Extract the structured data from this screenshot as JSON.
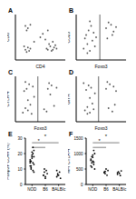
{
  "chart_data": [
    {
      "type": "scatter",
      "title": "A",
      "x_label": "CD4",
      "y_label": "CD8",
      "xlim": [
        0,
        4
      ],
      "ylim": [
        0,
        4
      ],
      "xticks": [
        0,
        1,
        2,
        3,
        4
      ],
      "yticks": [
        0,
        1,
        2,
        3,
        4
      ],
      "tick_labels": false,
      "color": "#555555",
      "x": [
        0.8,
        1.0,
        0.9,
        1.2,
        0.7,
        2.5,
        2.8,
        3.0,
        2.7,
        3.1,
        2.9,
        3.2,
        1.0,
        0.8,
        1.2,
        0.9,
        2.0,
        2.2,
        2.6,
        1.5,
        3.3,
        2.6,
        1.1,
        2.4,
        3.0
      ],
      "values": [
        0.9,
        1.1,
        0.7,
        1.0,
        1.2,
        1.0,
        1.2,
        0.9,
        1.4,
        1.1,
        0.8,
        1.3,
        2.8,
        3.0,
        3.1,
        2.6,
        2.0,
        2.3,
        2.6,
        1.6,
        1.0,
        0.9,
        0.8,
        1.8,
        1.6
      ]
    },
    {
      "type": "scatter",
      "title": "B",
      "x_label": "Foxp3",
      "y_label": "CD25",
      "xlim": [
        0,
        4
      ],
      "ylim": [
        0,
        4
      ],
      "xticks": [
        0,
        1,
        2,
        3,
        4
      ],
      "yticks": [
        0,
        1,
        2,
        3,
        4
      ],
      "tick_labels": false,
      "color": "#555555",
      "gate": 1.9,
      "x": [
        0.6,
        0.9,
        1.1,
        1.3,
        0.8,
        1.5,
        1.0,
        1.2,
        0.7,
        1.4,
        2.4,
        2.8,
        3.0,
        2.6,
        3.2,
        2.9,
        1.1,
        0.9,
        1.6,
        2.5
      ],
      "values": [
        1.0,
        1.4,
        0.8,
        1.7,
        2.2,
        1.2,
        2.6,
        3.0,
        1.9,
        2.4,
        2.8,
        3.1,
        2.5,
        3.3,
        2.9,
        2.2,
        3.4,
        0.6,
        2.0,
        1.9
      ]
    },
    {
      "type": "scatter",
      "title": "C",
      "x_label": "Foxp3",
      "y_label": "CTLA-4",
      "xlim": [
        0,
        4
      ],
      "ylim": [
        0,
        4
      ],
      "xticks": [
        0,
        1,
        2,
        3,
        4
      ],
      "yticks": [
        0,
        1,
        2,
        3,
        4
      ],
      "tick_labels": false,
      "color": "#555555",
      "gate": 1.8,
      "x": [
        0.6,
        0.8,
        1.0,
        1.2,
        0.9,
        1.4,
        1.1,
        0.7,
        1.3,
        2.3,
        2.6,
        2.9,
        3.1,
        2.7,
        3.3,
        2.5,
        1.0,
        1.5,
        2.8,
        0.8
      ],
      "values": [
        0.8,
        1.2,
        1.0,
        1.5,
        2.9,
        3.1,
        3.3,
        2.7,
        0.7,
        1.1,
        2.9,
        3.2,
        1.4,
        3.4,
        3.0,
        0.9,
        1.9,
        2.2,
        2.4,
        3.5
      ]
    },
    {
      "type": "scatter",
      "title": "D",
      "x_label": "Foxp3",
      "y_label": "GITR",
      "xlim": [
        0,
        4
      ],
      "ylim": [
        0,
        4
      ],
      "xticks": [
        0,
        1,
        2,
        3,
        4
      ],
      "yticks": [
        0,
        1,
        2,
        3,
        4
      ],
      "tick_labels": false,
      "color": "#555555",
      "gate": 1.8,
      "x": [
        0.7,
        0.9,
        1.1,
        1.3,
        0.8,
        1.2,
        1.0,
        1.4,
        2.4,
        2.7,
        3.0,
        3.2,
        2.6,
        2.9,
        1.1,
        0.6,
        2.5,
        3.1,
        1.5,
        0.9
      ],
      "values": [
        1.0,
        1.3,
        0.8,
        1.6,
        2.8,
        3.0,
        3.2,
        1.1,
        2.9,
        3.3,
        3.1,
        2.7,
        1.2,
        0.9,
        2.1,
        3.4,
        3.5,
        1.5,
        2.5,
        0.7
      ]
    },
    {
      "type": "scatter",
      "title": "E",
      "y_label": "Foxp3+ CD4+ (%)",
      "categories": [
        "NOD",
        "B6",
        "BALB/c"
      ],
      "ylim": [
        0,
        30
      ],
      "yticks": [
        0,
        10,
        20,
        30
      ],
      "color": "#000000",
      "values": [
        [
          12,
          15,
          18,
          9,
          22,
          14,
          11,
          17,
          20,
          13,
          16,
          10,
          19,
          24,
          8,
          15,
          12,
          21,
          14,
          18
        ],
        [
          6,
          8,
          5,
          9,
          7,
          6,
          10,
          4
        ],
        [
          5,
          7,
          6,
          8,
          4,
          9,
          6
        ]
      ],
      "annotations": [
        {
          "text": "*",
          "between": [
            0,
            1
          ]
        },
        {
          "text": "*",
          "between": [
            0,
            2
          ]
        }
      ]
    },
    {
      "type": "scatter",
      "title": "F",
      "y_label": "MFI CTLA-4",
      "categories": [
        "NOD",
        "B6",
        "BALB/c"
      ],
      "ylim": [
        0,
        1500
      ],
      "yticks": [
        0,
        500,
        1000,
        1500
      ],
      "color": "#000000",
      "values": [
        [
          600,
          900,
          750,
          1100,
          500,
          820,
          700,
          950,
          650,
          1000,
          780,
          560,
          880,
          720
        ],
        [
          400,
          350,
          500,
          300,
          450,
          380,
          420
        ],
        [
          330,
          410,
          360,
          290,
          440,
          380
        ]
      ],
      "annotations": [
        {
          "text": "*",
          "between": [
            0,
            1
          ]
        },
        {
          "text": "*",
          "between": [
            0,
            2
          ]
        }
      ]
    }
  ]
}
